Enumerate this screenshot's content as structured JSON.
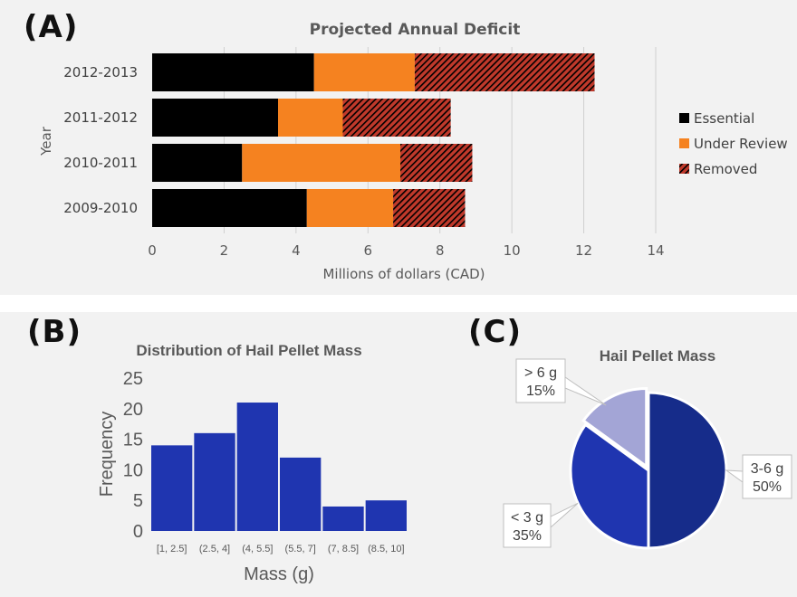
{
  "panel_letters": {
    "a": "(A)",
    "b": "(B)",
    "c": "(C)"
  },
  "chart_data": [
    {
      "type": "bar",
      "orientation": "horizontal",
      "stacked": true,
      "title": "Projected Annual Deficit",
      "xlabel": "Millions of dollars (CAD)",
      "ylabel": "Year",
      "xlim": [
        0,
        14
      ],
      "xticks": [
        "0",
        "2",
        "4",
        "6",
        "8",
        "10",
        "12",
        "14"
      ],
      "categories": [
        "2009-2010",
        "2010-2011",
        "2011-2012",
        "2012-2013"
      ],
      "series": [
        {
          "name": "Essential",
          "color": "#000000",
          "pattern": "solid",
          "values": [
            4.3,
            2.5,
            3.5,
            4.5
          ]
        },
        {
          "name": "Under Review",
          "color": "#f58220",
          "pattern": "solid",
          "values": [
            2.4,
            4.4,
            1.8,
            2.8
          ]
        },
        {
          "name": "Removed",
          "color": "#c0392b",
          "pattern": "hatched",
          "values": [
            2.0,
            2.0,
            3.0,
            5.0
          ]
        }
      ],
      "grid": "vertical",
      "legend_position": "right"
    },
    {
      "type": "bar",
      "title": "Distribution of Hail Pellet Mass",
      "xlabel": "Mass (g)",
      "ylabel": "Frequency",
      "ylim": [
        0,
        25
      ],
      "yticks": [
        "0",
        "5",
        "10",
        "15",
        "20",
        "25"
      ],
      "categories": [
        "[1, 2.5]",
        "(2.5, 4]",
        "(4, 5.5]",
        "(5.5, 7]",
        "(7, 8.5]",
        "(8.5, 10]"
      ],
      "values": [
        14,
        16,
        21,
        12,
        4,
        5
      ],
      "color": "#1f35b0"
    },
    {
      "type": "pie",
      "title": "Hail Pellet Mass",
      "slices": [
        {
          "label": "3-6 g",
          "pct_label": "50%",
          "value": 50,
          "color": "#162c8a"
        },
        {
          "label": "< 3 g",
          "pct_label": "35%",
          "value": 35,
          "color": "#1f35b0"
        },
        {
          "label": "> 6 g",
          "pct_label": "15%",
          "value": 15,
          "color": "#a3a5d6"
        }
      ]
    }
  ]
}
